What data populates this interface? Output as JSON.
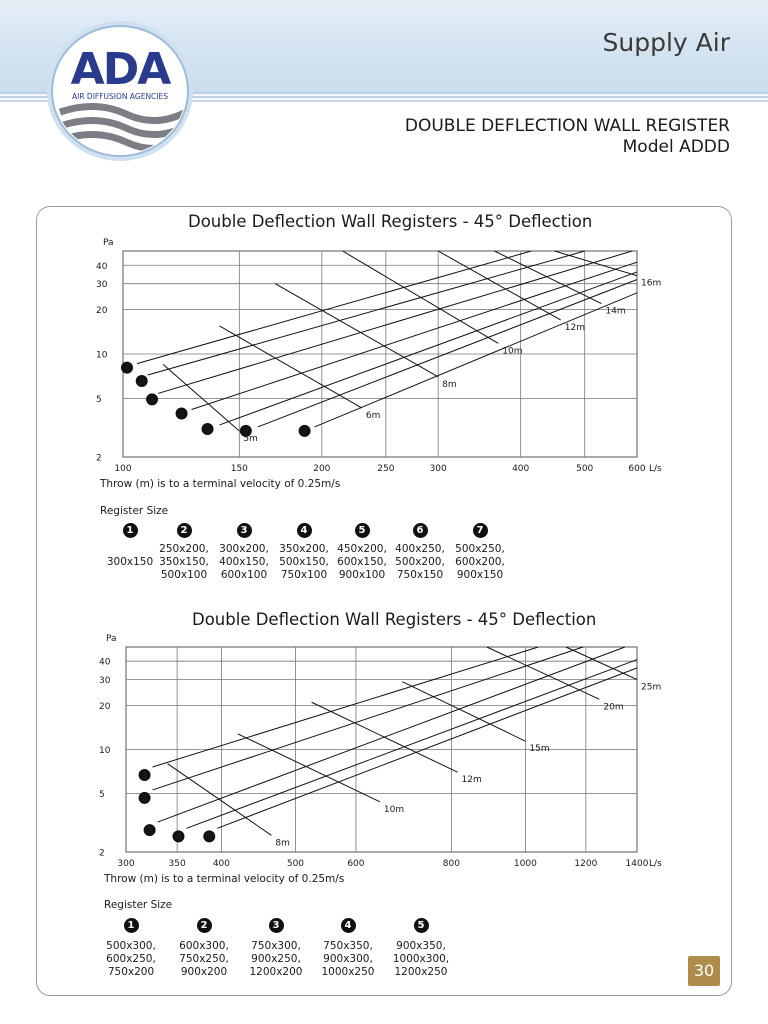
{
  "header": {
    "section": "Supply Air"
  },
  "logo": {
    "letters": "ADA",
    "tagline": "AIR DIFFUSION AGENCIES"
  },
  "product": {
    "name": "DOUBLE DEFLECTION WALL REGISTER",
    "model": "Model ADDD"
  },
  "page_number": "30",
  "chart_data": [
    {
      "type": "line",
      "title": "Double Deflection Wall Registers - 45° Deflection",
      "ylabel": "Pa",
      "xunit": "L/s",
      "xscale": "log",
      "yscale": "log",
      "xlim": [
        100,
        600
      ],
      "ylim": [
        2,
        50
      ],
      "xticks": [
        "100",
        "150",
        "200",
        "250",
        "300",
        "400",
        "500",
        "600"
      ],
      "yticks": [
        "2",
        "5",
        "10",
        "20",
        "30",
        "40"
      ],
      "grid": true,
      "note": "Throw (m) is to a terminal velocity of 0.25m/s",
      "series": [
        {
          "name": "1",
          "points": [
            [
              105,
              8.6
            ],
            [
              415,
              50
            ]
          ]
        },
        {
          "name": "2",
          "points": [
            [
              109,
              7.2
            ],
            [
              500,
              50
            ]
          ]
        },
        {
          "name": "3",
          "points": [
            [
              113,
              5.4
            ],
            [
              590,
              50
            ]
          ]
        },
        {
          "name": "4",
          "points": [
            [
              127,
              4.2
            ],
            [
              600,
              42
            ]
          ]
        },
        {
          "name": "5",
          "points": [
            [
              140,
              3.3
            ],
            [
              600,
              36
            ]
          ]
        },
        {
          "name": "6",
          "points": [
            [
              160,
              3.2
            ],
            [
              600,
              32
            ]
          ]
        },
        {
          "name": "7",
          "points": [
            [
              195,
              3.2
            ],
            [
              600,
              26
            ]
          ]
        }
      ],
      "throw_lines": [
        {
          "label": "5m",
          "points": [
            [
              115,
              8.5
            ],
            [
              150,
              3.0
            ]
          ]
        },
        {
          "label": "6m",
          "points": [
            [
              140,
              15.5
            ],
            [
              230,
              4.3
            ]
          ]
        },
        {
          "label": "8m",
          "points": [
            [
              170,
              30
            ],
            [
              300,
              7.0
            ]
          ]
        },
        {
          "label": "10m",
          "points": [
            [
              215,
              50
            ],
            [
              370,
              11.8
            ]
          ]
        },
        {
          "label": "12m",
          "points": [
            [
              300,
              50
            ],
            [
              460,
              17
            ]
          ]
        },
        {
          "label": "14m",
          "points": [
            [
              365,
              50
            ],
            [
              530,
              22
            ]
          ]
        },
        {
          "label": "16m",
          "points": [
            [
              450,
              50
            ],
            [
              600,
              34
            ]
          ]
        }
      ]
    },
    {
      "type": "line",
      "title": "Double Deflection Wall Registers - 45° Deflection",
      "ylabel": "Pa",
      "xunit": "L/s",
      "xscale": "log",
      "yscale": "log",
      "xlim": [
        300,
        1400
      ],
      "ylim": [
        2,
        50
      ],
      "xticks": [
        "300",
        "350",
        "400",
        "500",
        "600",
        "800",
        "1000",
        "1200",
        "1400"
      ],
      "yticks": [
        "2",
        "5",
        "10",
        "20",
        "30",
        "40"
      ],
      "grid": true,
      "note": "Throw (m) is to a terminal velocity of 0.25m/s",
      "series": [
        {
          "name": "1",
          "points": [
            [
              325,
              7.6
            ],
            [
              1040,
              50
            ]
          ]
        },
        {
          "name": "2",
          "points": [
            [
              325,
              5.3
            ],
            [
              1190,
              50
            ]
          ]
        },
        {
          "name": "3",
          "points": [
            [
              330,
              3.2
            ],
            [
              1350,
              50
            ]
          ]
        },
        {
          "name": "4",
          "points": [
            [
              360,
              2.9
            ],
            [
              1400,
              41
            ]
          ]
        },
        {
          "name": "5",
          "points": [
            [
              395,
              2.9
            ],
            [
              1400,
              36
            ]
          ]
        }
      ],
      "throw_lines": [
        {
          "label": "8m",
          "points": [
            [
              340,
              8.0
            ],
            [
              465,
              2.6
            ]
          ]
        },
        {
          "label": "10m",
          "points": [
            [
              420,
              12.8
            ],
            [
              645,
              4.4
            ]
          ]
        },
        {
          "label": "12m",
          "points": [
            [
              525,
              21
            ],
            [
              815,
              7.0
            ]
          ]
        },
        {
          "label": "15m",
          "points": [
            [
              690,
              29
            ],
            [
              1000,
              11.4
            ]
          ]
        },
        {
          "label": "20m",
          "points": [
            [
              890,
              50
            ],
            [
              1250,
              22
            ]
          ]
        },
        {
          "label": "25m",
          "points": [
            [
              1130,
              50
            ],
            [
              1400,
              30
            ]
          ]
        }
      ]
    }
  ],
  "register_tables": [
    {
      "label": "Register Size",
      "columns": [
        {
          "badge": "1",
          "sizes": "300x150"
        },
        {
          "badge": "2",
          "sizes": "250x200,\n350x150,\n500x100"
        },
        {
          "badge": "3",
          "sizes": "300x200,\n400x150,\n600x100"
        },
        {
          "badge": "4",
          "sizes": "350x200,\n500x150,\n750x100"
        },
        {
          "badge": "5",
          "sizes": "450x200,\n600x150,\n900x100"
        },
        {
          "badge": "6",
          "sizes": "400x250,\n500x200,\n750x150"
        },
        {
          "badge": "7",
          "sizes": "500x250,\n600x200,\n900x150"
        }
      ]
    },
    {
      "label": "Register Size",
      "columns": [
        {
          "badge": "1",
          "sizes": "500x300,\n600x250,\n750x200"
        },
        {
          "badge": "2",
          "sizes": "600x300,\n750x250,\n900x200"
        },
        {
          "badge": "3",
          "sizes": "750x300,\n900x250,\n1200x200"
        },
        {
          "badge": "4",
          "sizes": "750x350,\n900x300,\n1000x250"
        },
        {
          "badge": "5",
          "sizes": "900x350,\n1000x300,\n1200x250"
        }
      ]
    }
  ],
  "colors": {
    "page_number_bg": "#b08c4a",
    "banner": "#d3e3f0",
    "logo_blue": "#2a3a8c"
  }
}
